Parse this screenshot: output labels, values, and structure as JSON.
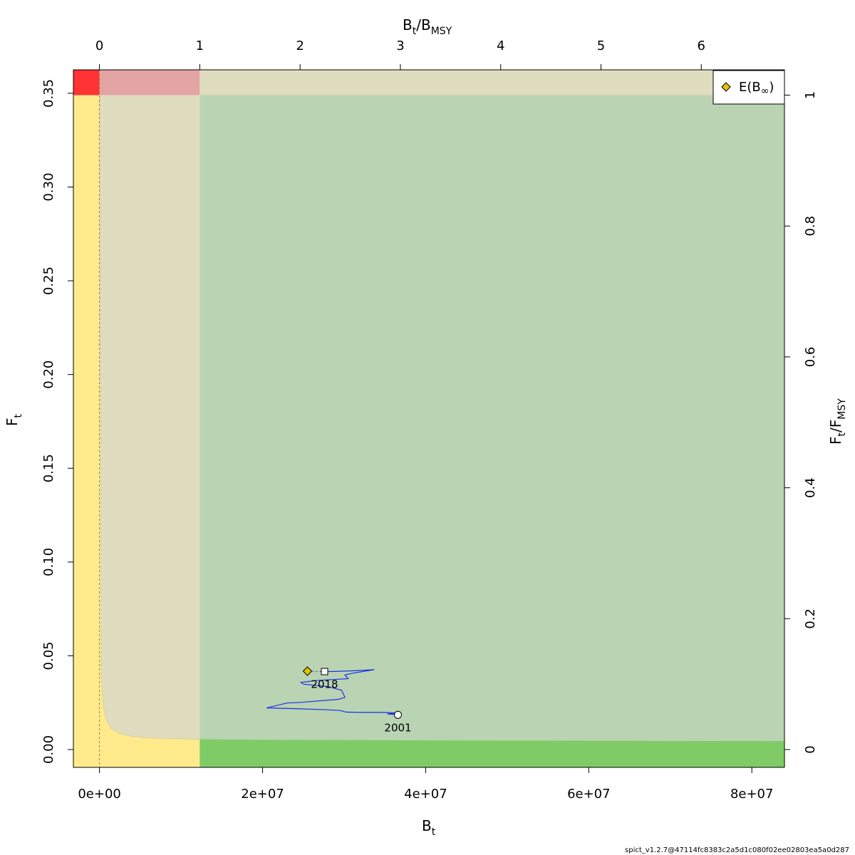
{
  "chart_data": {
    "type": "line",
    "title": "",
    "xlabel": {
      "main": "B",
      "sub": "t"
    },
    "ylabel": {
      "main": "F",
      "sub": "t"
    },
    "top_label": {
      "a": "B",
      "a_sub": "t",
      "b": "/B",
      "b_sub": "MSY"
    },
    "right_label": {
      "a": "F",
      "a_sub": "t",
      "b": "/F",
      "b_sub": "MSY"
    },
    "xlim": [
      -3200000,
      84000000
    ],
    "ylim": [
      -0.0095,
      0.3625
    ],
    "bmsy": 12300000,
    "fmsy": 0.349,
    "x_ticks": [
      {
        "value": 0,
        "label": "0e+00"
      },
      {
        "value": 20000000,
        "label": "2e+07"
      },
      {
        "value": 40000000,
        "label": "4e+07"
      },
      {
        "value": 60000000,
        "label": "6e+07"
      },
      {
        "value": 80000000,
        "label": "8e+07"
      }
    ],
    "y_ticks": [
      {
        "value": 0.0,
        "label": "0.00"
      },
      {
        "value": 0.05,
        "label": "0.05"
      },
      {
        "value": 0.1,
        "label": "0.10"
      },
      {
        "value": 0.15,
        "label": "0.15"
      },
      {
        "value": 0.2,
        "label": "0.20"
      },
      {
        "value": 0.25,
        "label": "0.25"
      },
      {
        "value": 0.3,
        "label": "0.30"
      },
      {
        "value": 0.35,
        "label": "0.35"
      }
    ],
    "top_ticks": [
      {
        "value": 0,
        "label": "0"
      },
      {
        "value": 1,
        "label": "1"
      },
      {
        "value": 2,
        "label": "2"
      },
      {
        "value": 3,
        "label": "3"
      },
      {
        "value": 4,
        "label": "4"
      },
      {
        "value": 5,
        "label": "5"
      },
      {
        "value": 6,
        "label": "6"
      }
    ],
    "right_ticks": [
      {
        "value": 0,
        "label": "0"
      },
      {
        "value": 0.2,
        "label": "0.2"
      },
      {
        "value": 0.4,
        "label": "0.4"
      },
      {
        "value": 0.6,
        "label": "0.6"
      },
      {
        "value": 0.8,
        "label": "0.8"
      },
      {
        "value": 1.0,
        "label": "1"
      }
    ],
    "zones": [
      {
        "name": "red",
        "color": "#ff3333",
        "x0": -3200000,
        "x1": 0,
        "y0": 0.349,
        "y1": 0.3625
      },
      {
        "name": "pink",
        "color": "#e3a4a4",
        "x0": 0,
        "x1": 12300000,
        "y0": 0.349,
        "y1": 0.3625
      },
      {
        "name": "tan-top",
        "color": "#e0dcbf",
        "x0": 12300000,
        "x1": 84000000,
        "y0": 0.349,
        "y1": 0.3625
      },
      {
        "name": "yellow",
        "color": "#ffea8c",
        "x0": -3200000,
        "x1": 0,
        "y0": -0.0095,
        "y1": 0.349
      },
      {
        "name": "tan-left",
        "color": "#e0dcbf",
        "x0": 0,
        "x1": 12300000,
        "y0": -0.0095,
        "y1": 0.349
      },
      {
        "name": "green-light",
        "color": "#bad3b3",
        "x0": 12300000,
        "x1": 84000000,
        "y0": -0.0095,
        "y1": 0.349
      }
    ],
    "lower_yellow_curve": [
      [
        0,
        0.349
      ],
      [
        200000,
        0.04
      ],
      [
        500000,
        0.022
      ],
      [
        900000,
        0.015
      ],
      [
        1500000,
        0.011
      ],
      [
        2500000,
        0.0085
      ],
      [
        4000000,
        0.007
      ],
      [
        6000000,
        0.0062
      ],
      [
        9000000,
        0.0058
      ],
      [
        12300000,
        0.0055
      ]
    ],
    "green_band_top": [
      [
        12300000,
        0.0055
      ],
      [
        20000000,
        0.0052
      ],
      [
        40000000,
        0.0049
      ],
      [
        60000000,
        0.0047
      ],
      [
        84000000,
        0.0045
      ]
    ],
    "green_band_color": "#7fcc66",
    "zero_line_x": 0,
    "series": [
      {
        "color": "#1a33e6",
        "points": [
          [
            36600000,
            0.0185
          ],
          [
            35300000,
            0.019
          ],
          [
            36500000,
            0.0195
          ],
          [
            34800000,
            0.0198
          ],
          [
            32000000,
            0.0198
          ],
          [
            30200000,
            0.02
          ],
          [
            29600000,
            0.0208
          ],
          [
            28000000,
            0.0212
          ],
          [
            24000000,
            0.0218
          ],
          [
            20500000,
            0.0222
          ],
          [
            22000000,
            0.0238
          ],
          [
            23000000,
            0.0248
          ],
          [
            24800000,
            0.0252
          ],
          [
            29300000,
            0.0268
          ],
          [
            30100000,
            0.0278
          ],
          [
            29700000,
            0.0316
          ],
          [
            28000000,
            0.0336
          ],
          [
            25000000,
            0.0349
          ],
          [
            24700000,
            0.0358
          ],
          [
            26500000,
            0.0368
          ],
          [
            30500000,
            0.0378
          ],
          [
            30100000,
            0.0398
          ],
          [
            31400000,
            0.041
          ],
          [
            33700000,
            0.0426
          ],
          [
            31000000,
            0.042
          ],
          [
            28500000,
            0.0416
          ],
          [
            27600000,
            0.0416
          ]
        ]
      }
    ],
    "dotted_segment": {
      "from": [
        27600000,
        0.0416
      ],
      "to": [
        25500000,
        0.0418
      ]
    },
    "start_point": {
      "x": 36600000,
      "y": 0.0185,
      "label": "2001"
    },
    "end_point": {
      "x": 27600000,
      "y": 0.0416,
      "label": "2018"
    },
    "e_binf_point": {
      "x": 25500000,
      "y": 0.0418,
      "color": "#e6c200"
    },
    "legend": {
      "label": "E(B",
      "sub": "∞",
      "close": ")",
      "placement": "top-right"
    }
  },
  "credit": "spict_v1.2.7@47114fc8383c2a5d1c080f02ee02803ea5a0d287"
}
